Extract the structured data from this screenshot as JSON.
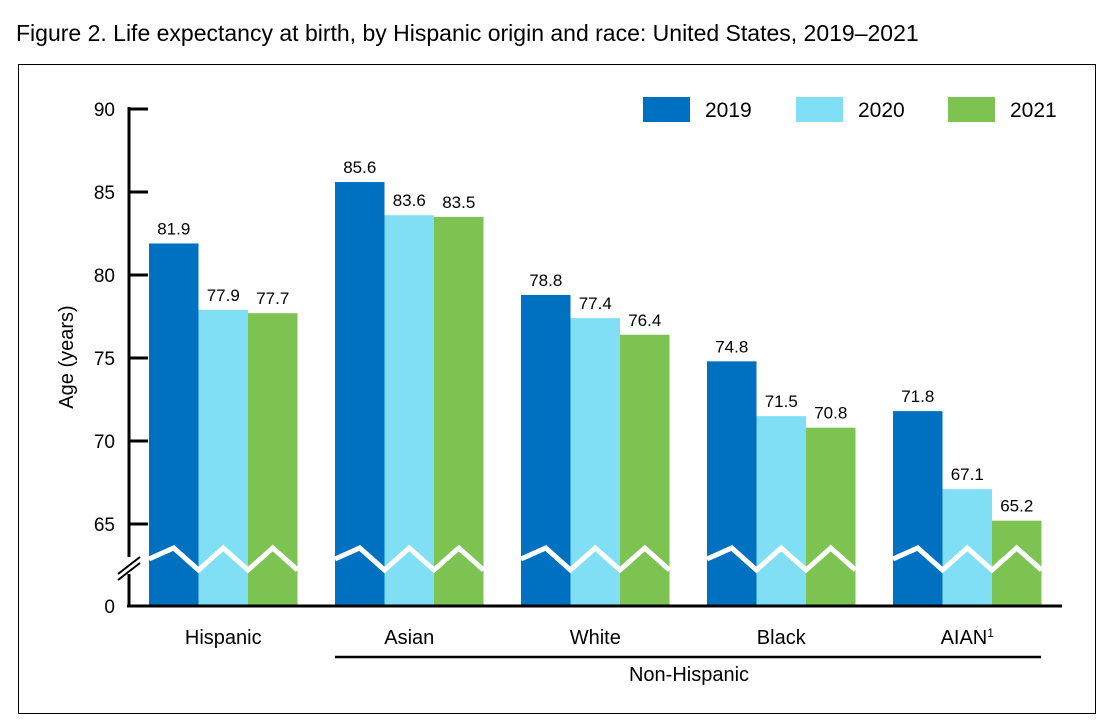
{
  "figure_title": "Figure 2. Life expectancy at birth, by Hispanic origin and race: United States, 2019–2021",
  "group_label": "Non-Hispanic",
  "footnote_marker": "1",
  "colors": {
    "2019": "#0070c0",
    "2020": "#80dff5",
    "2021": "#7dc352",
    "axis": "#000000"
  },
  "chart_data": {
    "type": "bar",
    "title": "Figure 2. Life expectancy at birth, by Hispanic origin and race: United States, 2019–2021",
    "xlabel": "",
    "ylabel": "Age (years)",
    "categories": [
      "Hispanic",
      "Asian",
      "White",
      "Black",
      "AIAN"
    ],
    "series": [
      {
        "name": "2019",
        "values": [
          81.9,
          85.6,
          78.8,
          74.8,
          71.8
        ]
      },
      {
        "name": "2020",
        "values": [
          77.9,
          83.6,
          77.4,
          71.5,
          67.1
        ]
      },
      {
        "name": "2021",
        "values": [
          77.7,
          83.5,
          76.4,
          70.8,
          65.2
        ]
      }
    ],
    "yticks": [
      "90",
      "85",
      "80",
      "75",
      "70",
      "65",
      "0"
    ],
    "ylim": [
      0,
      90
    ],
    "axis_break": [
      0,
      65
    ],
    "legend": "top-right",
    "grid": false
  }
}
